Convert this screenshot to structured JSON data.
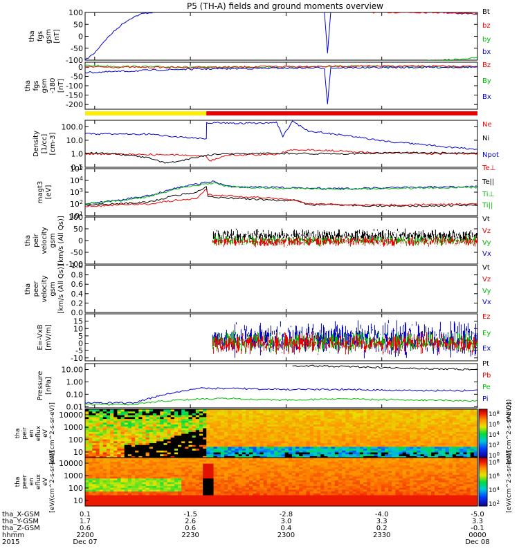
{
  "title": "P5 (TH-A) fields and ground moments overview",
  "colors": {
    "black": "#000000",
    "red": "#ee0000",
    "green": "#00bb00",
    "blue": "#0000cc",
    "yellow": "#ffee00",
    "flag_red": "#ee0000"
  },
  "chart_data": {
    "type": "line",
    "x_unit": "hhmm",
    "x_range": [
      "2015-12-07 21:57",
      "2015-12-08 00:00"
    ],
    "time_ticks": [
      "2200",
      "2230",
      "2300",
      "2330",
      "0000"
    ],
    "date_left": "Dec 07",
    "date_right": "Dec 08",
    "year": "2015",
    "ephemeris": [
      {
        "label": "tha_X-GSM",
        "values": [
          "0.1",
          "-1.5",
          "-2.8",
          "-4.0",
          "-5.0"
        ]
      },
      {
        "label": "tha_Y-GSM",
        "values": [
          "1.7",
          "2.6",
          "3.0",
          "3.3",
          "3.3"
        ]
      },
      {
        "label": "tha_Z-GSM",
        "values": [
          "0.6",
          "0.6",
          "0.4",
          "0.2",
          "-0.1"
        ]
      },
      {
        "label": "hhmm",
        "values": [
          "2200",
          "2230",
          "2300",
          "2330",
          "0000"
        ]
      }
    ],
    "flag_bar": {
      "yellow_until": "22:35",
      "red_after": "22:35"
    },
    "panels": [
      {
        "id": "fgs",
        "ylabel": [
          "tha",
          "fgs",
          "gsm",
          "[nT]"
        ],
        "ylim": [
          -100,
          100
        ],
        "ticks": [
          "100",
          "50",
          "0",
          "-50",
          "-100"
        ],
        "legend": [
          "Bt",
          "bz",
          "by",
          "bx"
        ],
        "series": [
          {
            "color": "blue",
            "points": [
              [
                0,
                -100
              ],
              [
                3,
                -70
              ],
              [
                6,
                -20
              ],
              [
                9,
                20
              ],
              [
                12,
                55
              ],
              [
                15,
                80
              ],
              [
                18,
                95
              ],
              [
                21,
                100
              ],
              [
                30,
                105
              ],
              [
                60,
                105
              ],
              [
                75,
                104
              ],
              [
                76,
                -70
              ],
              [
                77,
                104
              ],
              [
                90,
                104
              ],
              [
                110,
                102
              ],
              [
                123,
                92
              ]
            ]
          },
          {
            "color": "red",
            "points": [
              [
                90,
                100
              ],
              [
                110,
                100
              ],
              [
                123,
                95
              ]
            ]
          },
          {
            "color": "green",
            "points": [
              [
                105,
                -104
              ],
              [
                115,
                -98
              ],
              [
                123,
                -90
              ]
            ]
          }
        ]
      },
      {
        "id": "fgs-low",
        "ylabel": [
          "tha",
          "fgs",
          "gsm",
          "-180",
          "[nT]"
        ],
        "ylim": [
          -225,
          25
        ],
        "ticks": [
          "0",
          "-50",
          "-100",
          "-150",
          "-200"
        ],
        "legend": [
          "Bz",
          "By",
          "Bx"
        ],
        "series": [
          {
            "color": "green",
            "points": [
              [
                0,
                8
              ],
              [
                10,
                3
              ],
              [
                20,
                1
              ],
              [
                40,
                -2
              ],
              [
                60,
                0
              ],
              [
                80,
                3
              ],
              [
                100,
                3
              ],
              [
                123,
                0
              ]
            ]
          },
          {
            "color": "red",
            "points": [
              [
                0,
                0
              ],
              [
                20,
                -2
              ],
              [
                40,
                -3
              ],
              [
                60,
                2
              ],
              [
                76,
                3
              ],
              [
                100,
                4
              ],
              [
                123,
                3
              ]
            ]
          },
          {
            "color": "blue",
            "points": [
              [
                0,
                -30
              ],
              [
                10,
                -25
              ],
              [
                20,
                -18
              ],
              [
                30,
                -13
              ],
              [
                40,
                -10
              ],
              [
                60,
                -7
              ],
              [
                75,
                -5
              ],
              [
                76,
                -195
              ],
              [
                77,
                -5
              ],
              [
                100,
                -3
              ],
              [
                123,
                -1
              ]
            ]
          }
        ]
      },
      {
        "id": "density",
        "ylabel": [
          "Density",
          "[1/cc]",
          "[cm-3]"
        ],
        "scale": "log",
        "ylim": [
          0.1,
          300
        ],
        "ticks": [
          "100.0",
          "10.0",
          "1.0",
          "0.1"
        ],
        "legend": [
          "Ne",
          "Ni",
          "Npot"
        ],
        "series": [
          {
            "color": "blue",
            "points": [
              [
                0,
                30
              ],
              [
                20,
                28
              ],
              [
                38,
                12
              ],
              [
                38.1,
                200
              ],
              [
                40,
                200
              ],
              [
                50,
                180
              ],
              [
                60,
                200
              ],
              [
                62,
                20
              ],
              [
                65,
                250
              ],
              [
                70,
                50
              ],
              [
                80,
                25
              ],
              [
                95,
                8
              ],
              [
                110,
                4
              ],
              [
                123,
                2
              ]
            ]
          },
          {
            "color": "red",
            "points": [
              [
                0,
                1
              ],
              [
                20,
                0.9
              ],
              [
                38,
                0.7
              ],
              [
                39,
                0.3
              ],
              [
                45,
                0.8
              ],
              [
                60,
                0.9
              ],
              [
                65,
                2
              ],
              [
                75,
                1.8
              ],
              [
                90,
                1.2
              ],
              [
                110,
                1
              ],
              [
                123,
                1
              ]
            ]
          },
          {
            "color": "black",
            "points": [
              [
                0,
                1.2
              ],
              [
                10,
                1
              ],
              [
                20,
                0.5
              ],
              [
                25,
                0.2
              ],
              [
                30,
                0.3
              ],
              [
                38,
                0.8
              ],
              [
                45,
                1
              ],
              [
                60,
                1.1
              ],
              [
                80,
                1
              ],
              [
                100,
                1.2
              ],
              [
                123,
                1.1
              ]
            ]
          }
        ]
      },
      {
        "id": "temp",
        "ylabel": [
          "magt3",
          "[eV]"
        ],
        "scale": "log",
        "ylim": [
          10,
          100000
        ],
        "ticks": [
          "10^5",
          "10^4",
          "10^3",
          "10^2",
          "10^1"
        ],
        "legend": [
          "Te⊥",
          "Te||",
          "Ti⊥",
          "Ti||"
        ],
        "series": [
          {
            "color": "blue",
            "points": [
              [
                0,
                100
              ],
              [
                10,
                200
              ],
              [
                20,
                500
              ],
              [
                28,
                2000
              ],
              [
                35,
                5000
              ],
              [
                40,
                8000
              ],
              [
                45,
                3000
              ],
              [
                60,
                2500
              ],
              [
                80,
                2000
              ],
              [
                100,
                2500
              ],
              [
                123,
                3000
              ]
            ]
          },
          {
            "color": "green",
            "points": [
              [
                0,
                90
              ],
              [
                10,
                180
              ],
              [
                20,
                400
              ],
              [
                28,
                1800
              ],
              [
                35,
                4000
              ],
              [
                40,
                6000
              ],
              [
                45,
                2800
              ],
              [
                60,
                2200
              ],
              [
                80,
                1800
              ],
              [
                100,
                2200
              ],
              [
                123,
                2600
              ]
            ]
          },
          {
            "color": "black",
            "points": [
              [
                0,
                80
              ],
              [
                10,
                100
              ],
              [
                20,
                150
              ],
              [
                28,
                500
              ],
              [
                35,
                1000
              ],
              [
                38,
                3000
              ],
              [
                38.5,
                400
              ],
              [
                60,
                200
              ],
              [
                66,
                200
              ],
              [
                70,
                90
              ],
              [
                90,
                70
              ],
              [
                110,
                70
              ],
              [
                123,
                80
              ]
            ]
          },
          {
            "color": "red",
            "points": [
              [
                0,
                60
              ],
              [
                10,
                80
              ],
              [
                20,
                100
              ],
              [
                28,
                200
              ],
              [
                35,
                300
              ],
              [
                38,
                2000
              ],
              [
                38.5,
                600
              ],
              [
                60,
                300
              ],
              [
                66,
                200
              ],
              [
                70,
                100
              ],
              [
                90,
                80
              ],
              [
                110,
                90
              ],
              [
                123,
                100
              ]
            ]
          }
        ]
      },
      {
        "id": "peir-vel",
        "ylabel": [
          "tha",
          "peir",
          "velocity",
          "gsm",
          "[km/s (All Qs)]"
        ],
        "ylim": [
          -100,
          100
        ],
        "ticks": [
          "100",
          "50",
          "0",
          "-50",
          "-100"
        ],
        "legend": [
          "Vt",
          "Vz",
          "Vy",
          "Vx"
        ],
        "noisy_from": 40,
        "noise": [
          {
            "color": "black",
            "center": 20,
            "amp": 25
          },
          {
            "color": "green",
            "center": 0,
            "amp": 18
          },
          {
            "color": "red",
            "center": -5,
            "amp": 18
          }
        ]
      },
      {
        "id": "peer-vel",
        "ylabel": [
          "tha",
          "peer",
          "velocity",
          "gsm",
          "[km/s (All Qs)]"
        ],
        "ylim": [
          0,
          1
        ],
        "ticks": [
          "1.0",
          "0.8",
          "0.6",
          "0.4",
          "0.2",
          "0.0"
        ],
        "legend": [
          "Vt",
          "Vz",
          "Vy",
          "Vx"
        ]
      },
      {
        "id": "efield",
        "ylabel": [
          "E=-VxB",
          "[mV/m]"
        ],
        "ylim": [
          -12,
          20
        ],
        "ticks": [
          "15",
          "10",
          "5",
          "0",
          "-5",
          "-10"
        ],
        "legend": [
          "Ez",
          "Ey",
          "Ex"
        ],
        "noisy_from": 40,
        "noise": [
          {
            "color": "blue",
            "center": 3,
            "amp": 10
          },
          {
            "color": "green",
            "center": 1,
            "amp": 6
          },
          {
            "color": "red",
            "center": 0,
            "amp": 6
          }
        ]
      },
      {
        "id": "pressure",
        "ylabel": [
          "Pressure",
          "[nPa]"
        ],
        "scale": "log",
        "ylim": [
          0.008,
          30
        ],
        "ticks": [
          "10.00",
          "1.00",
          "0.10",
          "0.01"
        ],
        "legend": [
          "Pt",
          "Pb",
          "Pe",
          "Pi"
        ],
        "series": [
          {
            "color": "black",
            "points": [
              [
                65,
                20
              ],
              [
                80,
                18
              ],
              [
                100,
                13
              ],
              [
                123,
                10
              ]
            ]
          },
          {
            "color": "blue",
            "points": [
              [
                0,
                0.02
              ],
              [
                15,
                0.02
              ],
              [
                25,
                0.1
              ],
              [
                35,
                0.3
              ],
              [
                45,
                0.3
              ],
              [
                60,
                0.25
              ],
              [
                80,
                0.25
              ],
              [
                100,
                0.2
              ],
              [
                123,
                0.2
              ]
            ]
          },
          {
            "color": "green",
            "points": [
              [
                0,
                0.015
              ],
              [
                15,
                0.015
              ],
              [
                25,
                0.03
              ],
              [
                35,
                0.04
              ],
              [
                45,
                0.045
              ],
              [
                60,
                0.035
              ],
              [
                80,
                0.04
              ],
              [
                100,
                0.035
              ],
              [
                123,
                0.03
              ]
            ]
          }
        ]
      }
    ],
    "spectrograms": [
      {
        "id": "peir-en-eflux",
        "ylabel": [
          "tha",
          "peir",
          "en",
          "eflux",
          "eV",
          "[eV/(cm^2-s-sr-eV)]"
        ],
        "yticks": [
          "10000",
          "1000",
          "100",
          "10"
        ],
        "colorbar_ticks": [
          "10^8",
          "10^6",
          "10^4",
          "10^2",
          "10^0"
        ],
        "colorbar_label": "[eV/(cm^2-s-sr-eV)]",
        "qs_label": "(All Qs)"
      },
      {
        "id": "peer-en-eflux",
        "ylabel": [
          "tha",
          "peer",
          "en",
          "eflux",
          "eV",
          "[eV/(cm^2-s-sr-eV)]"
        ],
        "yticks": [
          "10000",
          "1000",
          "100",
          "10"
        ],
        "colorbar_ticks": [
          "10^8",
          "10^6",
          "10^4",
          "10^2"
        ],
        "colorbar_label": "[eV/(cm^2-s-sr-eV)]"
      }
    ]
  }
}
